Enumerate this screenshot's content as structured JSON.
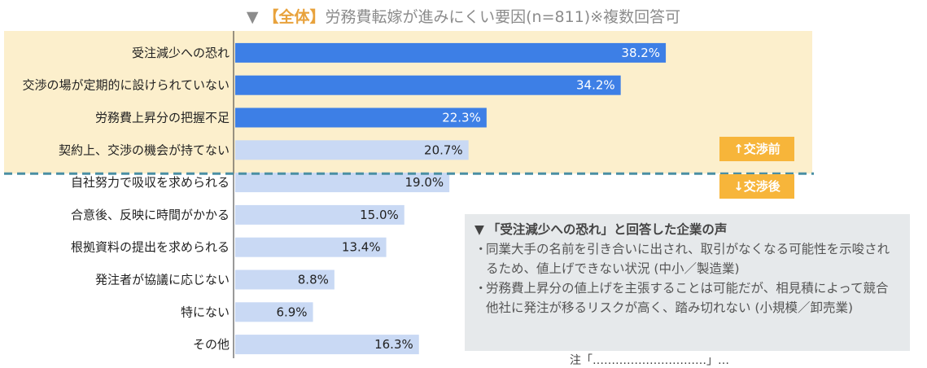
{
  "title": {
    "marker": "▼",
    "bracket": "【全体】",
    "text": "労務費転嫁が進みにくい要因(n=811)※複数回答可"
  },
  "chart_data": {
    "type": "bar",
    "orientation": "horizontal",
    "unit": "%",
    "categories": [
      "受注減少への恐れ",
      "交渉の場が定期的に設けられていない",
      "労務費上昇分の把握不足",
      "契約上、交渉の機会が持てない",
      "自社努力で吸収を求められる",
      "合意後、反映に時間がかかる",
      "根拠資料の提出を求められる",
      "発注者が協議に応じない",
      "特にない",
      "その他"
    ],
    "values": [
      38.2,
      34.2,
      22.3,
      20.7,
      19.0,
      15.0,
      13.4,
      8.8,
      6.9,
      16.3
    ],
    "labels": [
      "38.2%",
      "34.2%",
      "22.3%",
      "20.7%",
      "19.0%",
      "15.0%",
      "13.4%",
      "8.8%",
      "6.9%",
      "16.3%"
    ],
    "highlighted_count": 3,
    "before_negotiation_count": 4,
    "xlim": [
      0,
      50
    ],
    "colors": {
      "highlight": "#3d7fe6",
      "normal": "#c9d9f4",
      "before_band": "#fcefcc",
      "divider": "#4a8fa3"
    }
  },
  "tags": {
    "before": "↑交渉前",
    "after": "↓交渉後"
  },
  "voice": {
    "marker": "▼",
    "heading": "「受注減少への恐れ」と回答した企業の声",
    "items": [
      {
        "bullet": "・",
        "text": "同業大手の名前を引き合いに出され、取引がなくなる可能性を示唆されるため、値上げできない状況 (中小／製造業)"
      },
      {
        "bullet": "・",
        "text": "労務費上昇分の値上げを主張することは可能だが、相見積によって競合他社に発注が移るリスクが高く、踏み切れない (小規模／卸売業)"
      }
    ]
  },
  "cutoff_text": "注「…………………………」…"
}
